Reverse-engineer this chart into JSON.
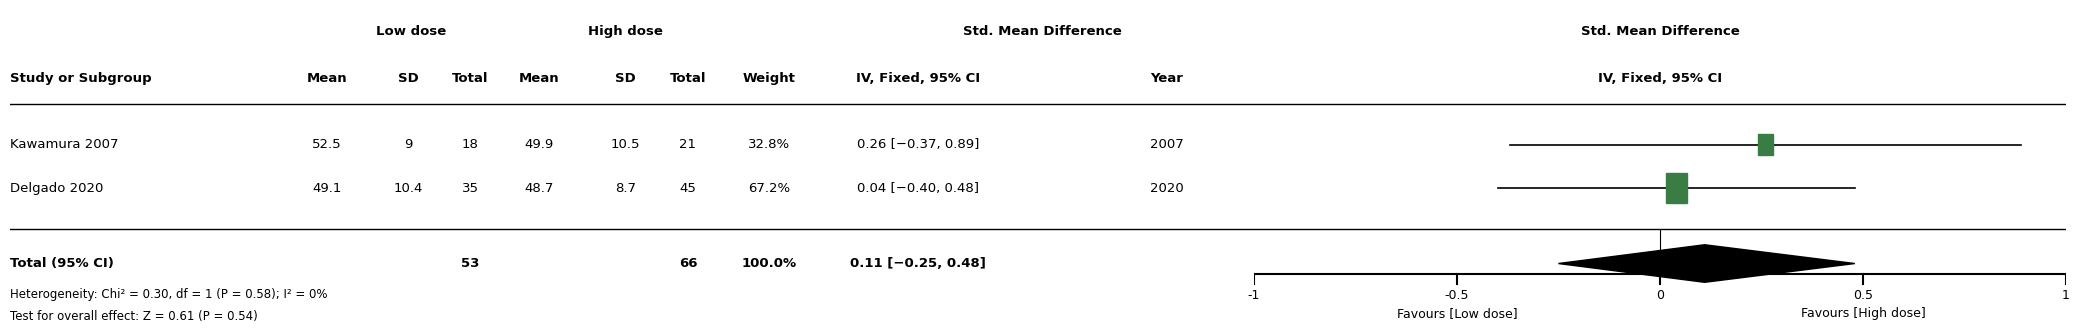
{
  "studies": [
    {
      "name": "Kawamura 2007",
      "low_mean": 52.5,
      "low_sd": 9,
      "low_total": 18,
      "high_mean": 49.9,
      "high_sd": 10.5,
      "high_total": 21,
      "weight": "32.8%",
      "smd": 0.26,
      "ci_low": -0.37,
      "ci_high": 0.89,
      "ci_text": "0.26 [−0.37, 0.89]",
      "year": "2007"
    },
    {
      "name": "Delgado 2020",
      "low_mean": 49.1,
      "low_sd": 10.4,
      "low_total": 35,
      "high_mean": 48.7,
      "high_sd": 8.7,
      "high_total": 45,
      "weight": "67.2%",
      "smd": 0.04,
      "ci_low": -0.4,
      "ci_high": 0.48,
      "ci_text": "0.04 [−0.40, 0.48]",
      "year": "2020"
    }
  ],
  "total": {
    "low_total": 53,
    "high_total": 66,
    "weight": "100.0%",
    "smd": 0.11,
    "ci_low": -0.25,
    "ci_high": 0.48,
    "ci_text": "0.11 [−0.25, 0.48]"
  },
  "heterogeneity_text": "Heterogeneity: Chi² = 0.30, df = 1 (P = 0.58); I² = 0%",
  "overall_effect_text": "Test for overall effect: Z = 0.61 (P = 0.54)",
  "header_line1_left": "Low dose",
  "header_line1_right": "High dose",
  "header_line1_smd": "Std. Mean Difference",
  "plot_header": "Std. Mean Difference",
  "plot_subheader": "IV, Fixed, 95% CI",
  "axis_ticks": [
    -1,
    -0.5,
    0,
    0.5,
    1
  ],
  "axis_labels": [
    "-1",
    "-0.5",
    "0",
    "0.5",
    "1"
  ],
  "favours_low": "Favours [Low dose]",
  "favours_high": "Favours [High dose]",
  "plot_xlim": [
    -1.0,
    1.0
  ],
  "square_color": "#3a7d44",
  "diamond_color": "#000000",
  "text_color": "#000000",
  "background_color": "#ffffff",
  "study_weights": [
    32.8,
    67.2
  ]
}
